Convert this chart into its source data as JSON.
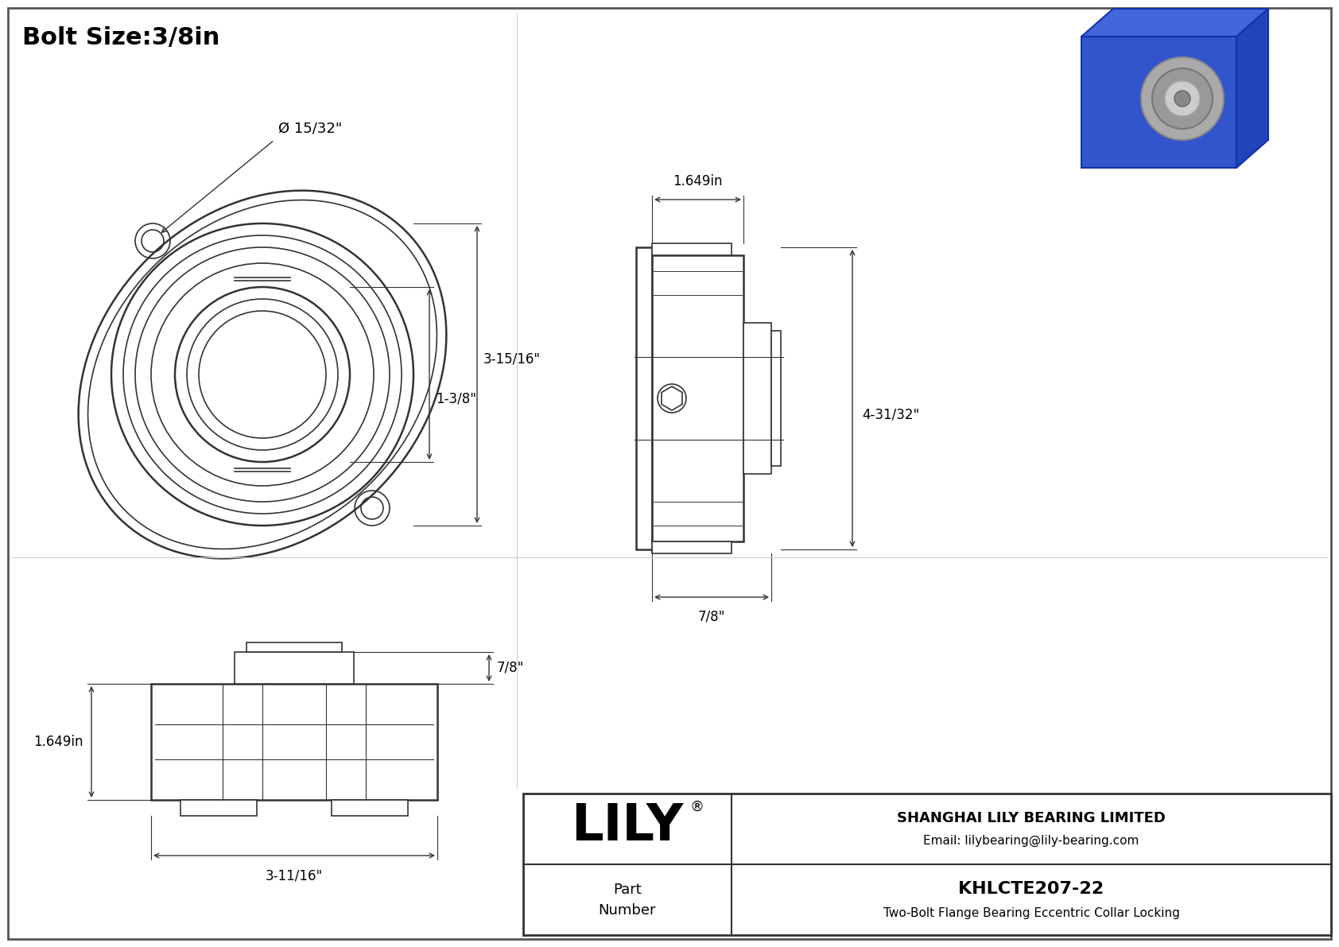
{
  "line_color": "#333333",
  "title": "Bolt Size:3/8in",
  "company": "SHANGHAI LILY BEARING LIMITED",
  "email": "Email: lilybearing@lily-bearing.com",
  "part_number_label": "Part\nNumber",
  "part_number": "KHLCTE207-22",
  "description": "Two-Bolt Flange Bearing Eccentric Collar Locking",
  "lily_text": "LILY",
  "dim_hole": "Ø 15/32\"",
  "dim_inner": "1-3/8\"",
  "dim_outer": "3-15/16\"",
  "dim_width_sv": "1.649in",
  "dim_height_sv": "4-31/32\"",
  "dim_depth_sv": "7/8\"",
  "dim_height_bv": "1.649in",
  "dim_depth_bv": "7/8\"",
  "dim_length_bv": "3-11/16\""
}
